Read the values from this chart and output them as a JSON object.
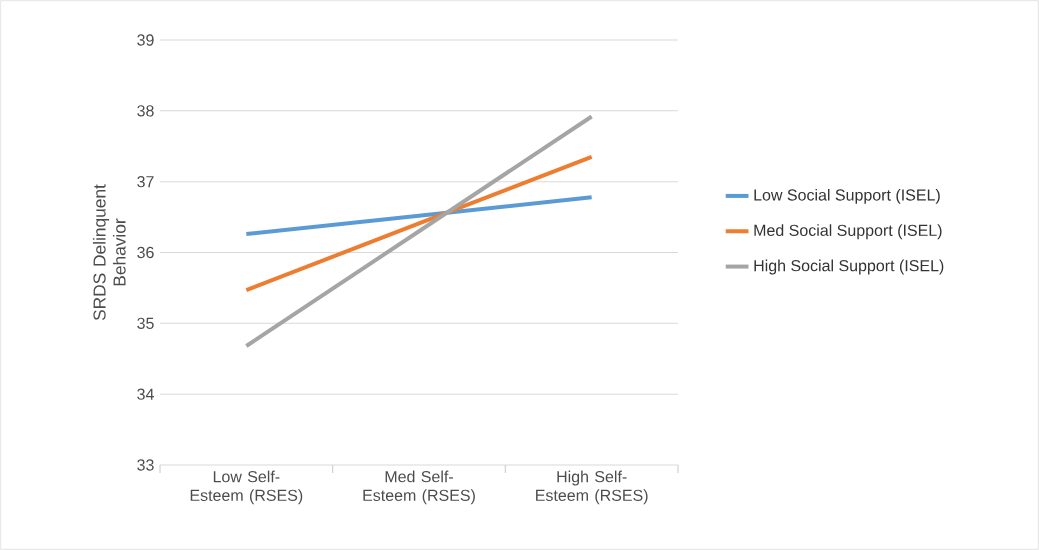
{
  "chart_data": {
    "type": "line",
    "ylabel": "SRDS Delinquent Behavior",
    "categories": [
      "Low Self-Esteem (RSES)",
      "Med Self-Esteem (RSES)",
      "High Self-Esteem (RSES)"
    ],
    "series": [
      {
        "name": "Low Social Support (ISEL)",
        "color": "#5b9bd5",
        "values": [
          36.26,
          36.52,
          36.78
        ]
      },
      {
        "name": "Med Social Support (ISEL)",
        "color": "#ed7d31",
        "values": [
          35.47,
          36.41,
          37.35
        ]
      },
      {
        "name": "High Social Support (ISEL)",
        "color": "#a5a5a5",
        "values": [
          34.68,
          36.3,
          37.92
        ]
      }
    ],
    "ylim": [
      33,
      39
    ],
    "yticks": [
      33,
      34,
      35,
      36,
      37,
      38,
      39
    ],
    "grid": "y",
    "legend": "right",
    "marker": "none",
    "line_style": "solid"
  }
}
